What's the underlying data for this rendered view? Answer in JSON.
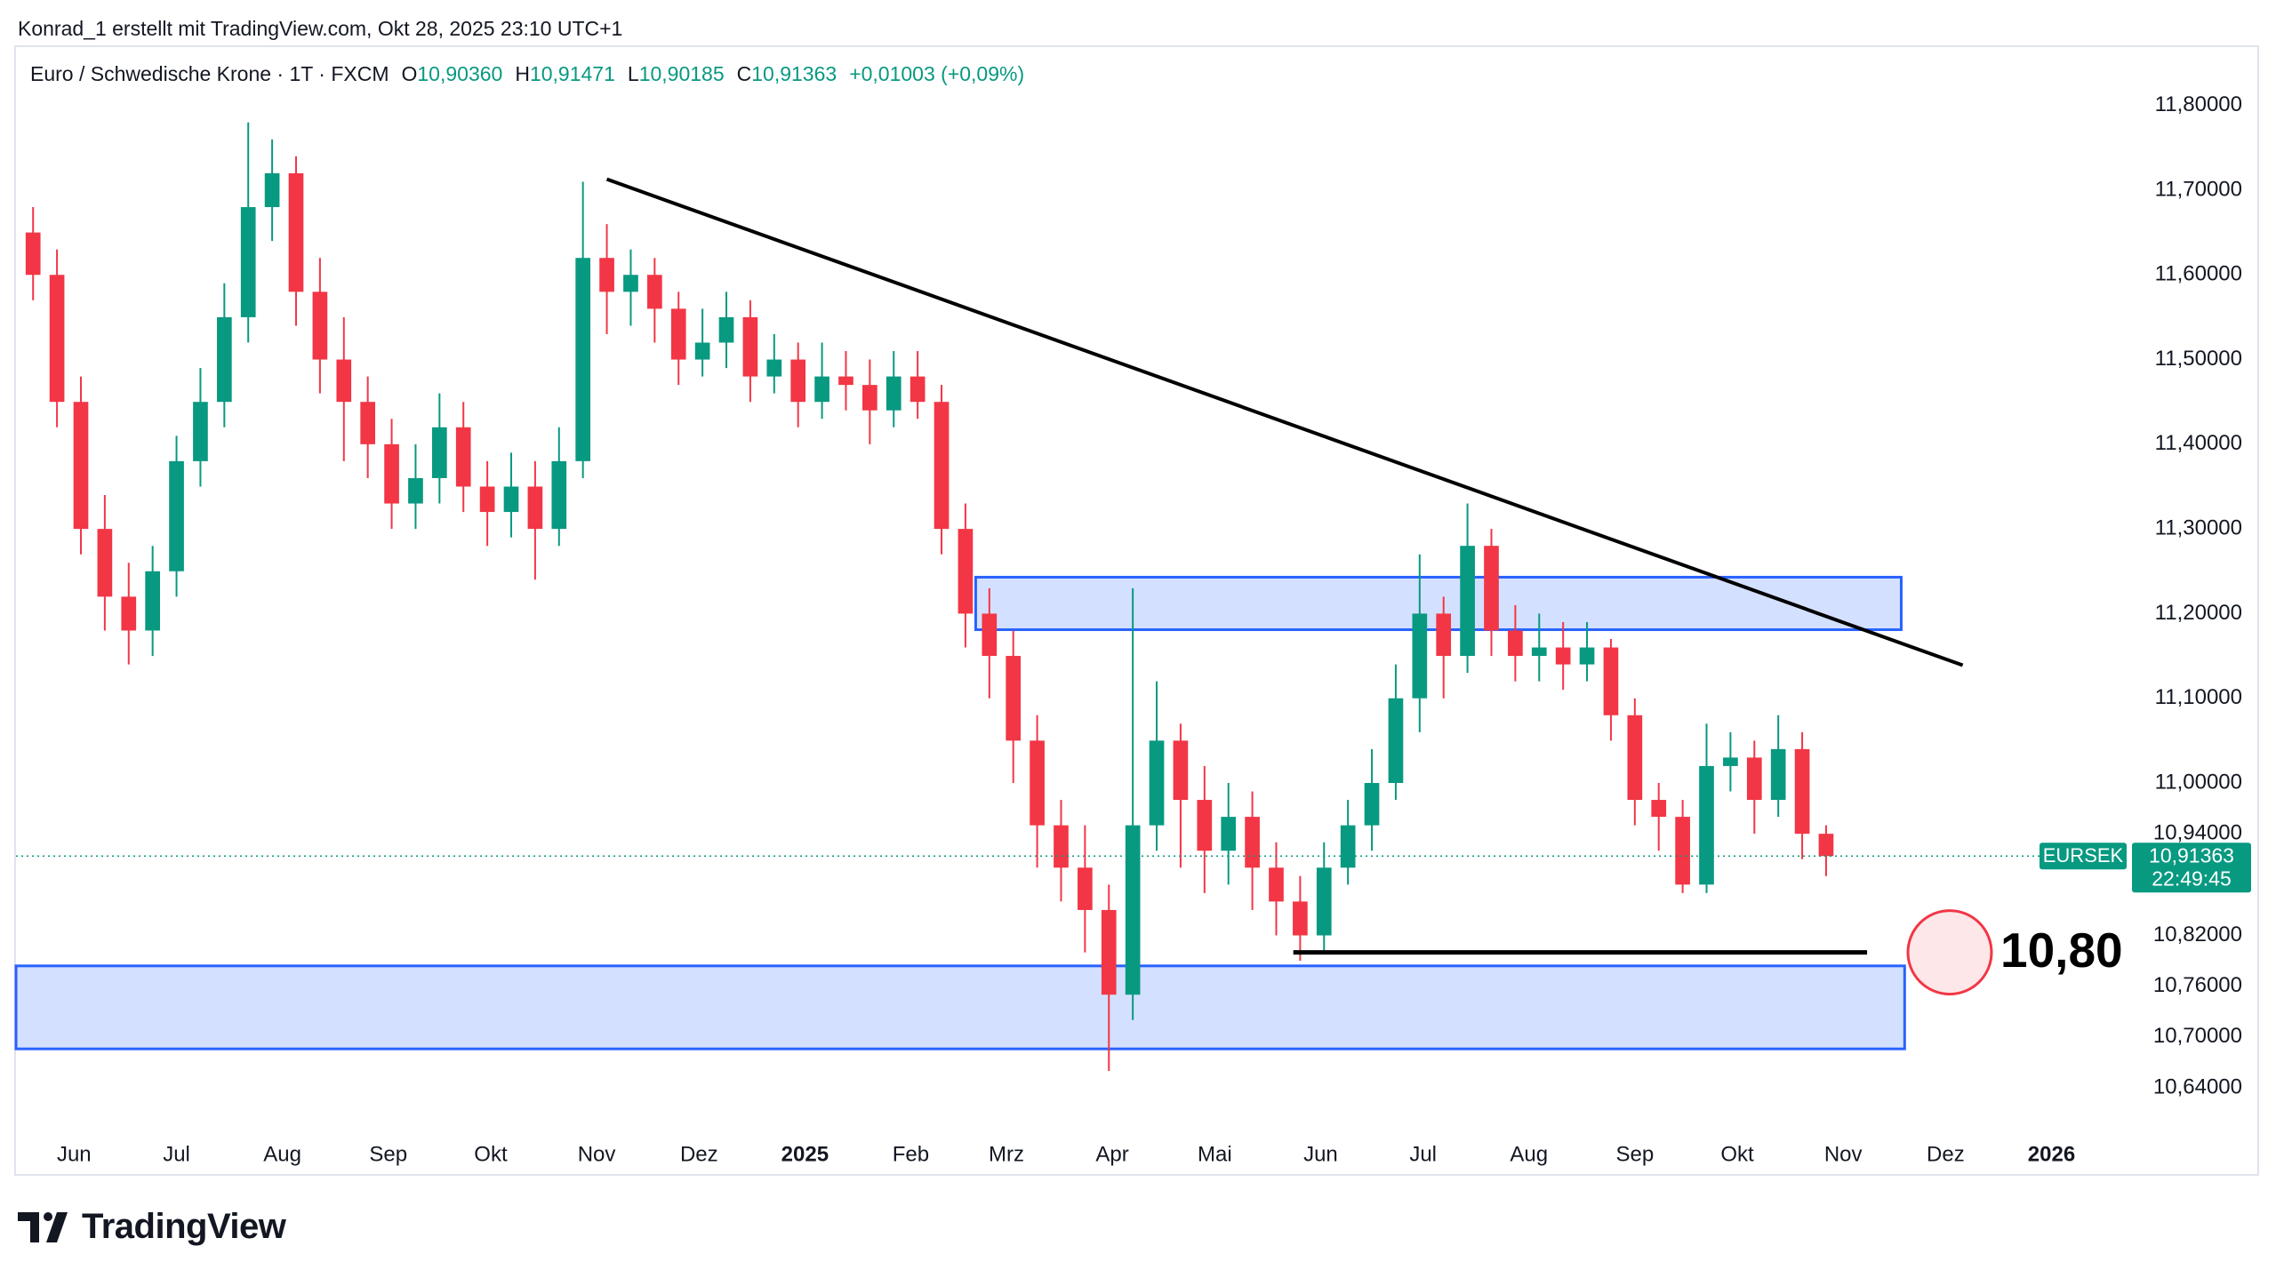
{
  "chart_data": {
    "type": "candlestick",
    "attribution": "Konrad_1 erstellt mit TradingView.com, Okt 28, 2025 23:10 UTC+1",
    "title": "Euro / Schwedische Krone · 1T · FXCM",
    "ohlc_header": [
      {
        "key": "O",
        "value": "10,90360"
      },
      {
        "key": "H",
        "value": "10,91471"
      },
      {
        "key": "L",
        "value": "10,90185"
      },
      {
        "key": "C",
        "value": "10,91363"
      }
    ],
    "change": "+0,01003 (+0,09%)",
    "x": [
      "2024-05-20",
      "2024-05-27",
      "2024-06-03",
      "2024-06-10",
      "2024-06-17",
      "2024-06-24",
      "2024-07-01",
      "2024-07-08",
      "2024-07-15",
      "2024-07-22",
      "2024-07-29",
      "2024-08-05",
      "2024-08-12",
      "2024-08-19",
      "2024-08-26",
      "2024-09-02",
      "2024-09-09",
      "2024-09-16",
      "2024-09-23",
      "2024-09-30",
      "2024-10-07",
      "2024-10-14",
      "2024-10-21",
      "2024-10-28",
      "2024-11-04",
      "2024-11-11",
      "2024-11-18",
      "2024-11-25",
      "2024-12-02",
      "2024-12-09",
      "2024-12-16",
      "2024-12-23",
      "2024-12-30",
      "2025-01-06",
      "2025-01-13",
      "2025-01-20",
      "2025-01-27",
      "2025-02-03",
      "2025-02-10",
      "2025-02-17",
      "2025-02-24",
      "2025-03-03",
      "2025-03-10",
      "2025-03-17",
      "2025-03-24",
      "2025-03-31",
      "2025-04-07",
      "2025-04-14",
      "2025-04-21",
      "2025-04-28",
      "2025-05-05",
      "2025-05-12",
      "2025-05-19",
      "2025-05-26",
      "2025-06-02",
      "2025-06-09",
      "2025-06-16",
      "2025-06-23",
      "2025-06-30",
      "2025-07-07",
      "2025-07-14",
      "2025-07-21",
      "2025-07-28",
      "2025-08-04",
      "2025-08-11",
      "2025-08-18",
      "2025-08-25",
      "2025-09-01",
      "2025-09-08",
      "2025-09-15",
      "2025-09-22",
      "2025-09-29",
      "2025-10-06",
      "2025-10-13",
      "2025-10-20",
      "2025-10-27"
    ],
    "series": [
      {
        "name": "EURSEK",
        "up_color": "#089981",
        "down_color": "#f23645",
        "open": [
          11.65,
          11.6,
          11.45,
          11.3,
          11.22,
          11.18,
          11.25,
          11.38,
          11.45,
          11.55,
          11.68,
          11.72,
          11.58,
          11.5,
          11.45,
          11.4,
          11.33,
          11.36,
          11.42,
          11.35,
          11.32,
          11.35,
          11.3,
          11.38,
          11.62,
          11.58,
          11.6,
          11.56,
          11.5,
          11.52,
          11.55,
          11.48,
          11.5,
          11.45,
          11.48,
          11.47,
          11.44,
          11.48,
          11.45,
          11.3,
          11.2,
          11.15,
          11.05,
          10.95,
          10.9,
          10.85,
          10.75,
          10.95,
          11.05,
          10.98,
          10.92,
          10.96,
          10.9,
          10.86,
          10.82,
          10.9,
          10.95,
          11.0,
          11.1,
          11.2,
          11.15,
          11.28,
          11.18,
          11.15,
          11.16,
          11.14,
          11.16,
          11.08,
          10.98,
          10.96,
          10.88,
          11.02,
          11.03,
          10.98,
          11.04,
          10.94
        ],
        "high": [
          11.68,
          11.63,
          11.48,
          11.34,
          11.26,
          11.28,
          11.41,
          11.49,
          11.59,
          11.78,
          11.76,
          11.74,
          11.62,
          11.55,
          11.48,
          11.43,
          11.4,
          11.46,
          11.45,
          11.38,
          11.39,
          11.38,
          11.42,
          11.71,
          11.66,
          11.63,
          11.62,
          11.58,
          11.56,
          11.58,
          11.57,
          11.53,
          11.52,
          11.52,
          11.51,
          11.5,
          11.51,
          11.51,
          11.47,
          11.33,
          11.23,
          11.18,
          11.08,
          10.98,
          10.95,
          10.88,
          11.23,
          11.12,
          11.07,
          11.02,
          11.0,
          10.99,
          10.93,
          10.89,
          10.93,
          10.98,
          11.04,
          11.14,
          11.27,
          11.22,
          11.33,
          11.3,
          11.21,
          11.2,
          11.19,
          11.19,
          11.17,
          11.1,
          11.0,
          10.98,
          11.07,
          11.06,
          11.05,
          11.08,
          11.06,
          10.95
        ],
        "low": [
          11.57,
          11.42,
          11.27,
          11.18,
          11.14,
          11.15,
          11.22,
          11.35,
          11.42,
          11.52,
          11.64,
          11.54,
          11.46,
          11.38,
          11.36,
          11.3,
          11.3,
          11.33,
          11.32,
          11.28,
          11.29,
          11.24,
          11.28,
          11.36,
          11.53,
          11.54,
          11.52,
          11.47,
          11.48,
          11.49,
          11.45,
          11.46,
          11.42,
          11.43,
          11.44,
          11.4,
          11.42,
          11.43,
          11.27,
          11.16,
          11.1,
          11.0,
          10.9,
          10.86,
          10.8,
          10.66,
          10.72,
          10.92,
          10.9,
          10.87,
          10.88,
          10.85,
          10.82,
          10.79,
          10.8,
          10.88,
          10.92,
          10.98,
          11.06,
          11.1,
          11.13,
          11.15,
          11.12,
          11.12,
          11.11,
          11.12,
          11.05,
          10.95,
          10.92,
          10.87,
          10.87,
          10.99,
          10.94,
          10.96,
          10.91,
          10.89
        ],
        "close": [
          11.6,
          11.45,
          11.3,
          11.22,
          11.18,
          11.25,
          11.38,
          11.45,
          11.55,
          11.68,
          11.72,
          11.58,
          11.5,
          11.45,
          11.4,
          11.33,
          11.36,
          11.42,
          11.35,
          11.32,
          11.35,
          11.3,
          11.38,
          11.62,
          11.58,
          11.6,
          11.56,
          11.5,
          11.52,
          11.55,
          11.48,
          11.5,
          11.45,
          11.48,
          11.47,
          11.44,
          11.48,
          11.45,
          11.3,
          11.2,
          11.15,
          11.05,
          10.95,
          10.9,
          10.85,
          10.75,
          10.95,
          11.05,
          10.98,
          10.92,
          10.96,
          10.9,
          10.86,
          10.82,
          10.9,
          10.95,
          11.0,
          11.1,
          11.2,
          11.15,
          11.28,
          11.18,
          11.15,
          11.16,
          11.14,
          11.16,
          11.08,
          10.98,
          10.96,
          10.88,
          11.02,
          11.03,
          10.98,
          11.04,
          10.94,
          10.91363
        ]
      }
    ],
    "xlim": [
      "2024-05-15",
      "2026-01-23"
    ],
    "xticks": [
      {
        "value": "2024-06-01",
        "label": "Jun"
      },
      {
        "value": "2024-07-01",
        "label": "Jul"
      },
      {
        "value": "2024-08-01",
        "label": "Aug"
      },
      {
        "value": "2024-09-01",
        "label": "Sep"
      },
      {
        "value": "2024-10-01",
        "label": "Okt"
      },
      {
        "value": "2024-11-01",
        "label": "Nov"
      },
      {
        "value": "2024-12-01",
        "label": "Dez"
      },
      {
        "value": "2025-01-01",
        "label": "2025"
      },
      {
        "value": "2025-02-01",
        "label": "Feb"
      },
      {
        "value": "2025-03-01",
        "label": "Mrz"
      },
      {
        "value": "2025-04-01",
        "label": "Apr"
      },
      {
        "value": "2025-05-01",
        "label": "Mai"
      },
      {
        "value": "2025-06-01",
        "label": "Jun"
      },
      {
        "value": "2025-07-01",
        "label": "Jul"
      },
      {
        "value": "2025-08-01",
        "label": "Aug"
      },
      {
        "value": "2025-09-01",
        "label": "Sep"
      },
      {
        "value": "2025-10-01",
        "label": "Okt"
      },
      {
        "value": "2025-11-01",
        "label": "Nov"
      },
      {
        "value": "2025-12-01",
        "label": "Dez"
      },
      {
        "value": "2026-01-01",
        "label": "2026"
      }
    ],
    "ylim": [
      10.597,
      11.87
    ],
    "yticks": [
      {
        "value": 11.8,
        "label": "11,80000"
      },
      {
        "value": 11.7,
        "label": "11,70000"
      },
      {
        "value": 11.6,
        "label": "11,60000"
      },
      {
        "value": 11.5,
        "label": "11,50000"
      },
      {
        "value": 11.4,
        "label": "11,40000"
      },
      {
        "value": 11.3,
        "label": "11,30000"
      },
      {
        "value": 11.2,
        "label": "11,20000"
      },
      {
        "value": 11.1,
        "label": "11,10000"
      },
      {
        "value": 11.0,
        "label": "11,00000"
      },
      {
        "value": 10.94,
        "label": "10,94000"
      },
      {
        "value": 10.82,
        "label": "10,82000"
      },
      {
        "value": 10.76,
        "label": "10,76000"
      },
      {
        "value": 10.7,
        "label": "10,70000"
      },
      {
        "value": 10.64,
        "label": "10,64000"
      }
    ],
    "grid": false,
    "price_tag": {
      "symbol": "EURSEK",
      "label": "10,91363",
      "countdown": "22:49:45"
    },
    "trendline": {
      "x": [
        "2024-11-04",
        "2025-12-06"
      ],
      "y": [
        11.713,
        11.139
      ],
      "color": "#000000"
    },
    "zones": [
      {
        "x": [
          "2025-02-20",
          "2025-11-18"
        ],
        "y": [
          11.181,
          11.243
        ]
      },
      {
        "x": [
          "2024-05-15",
          "2025-11-19"
        ],
        "y": [
          10.686,
          10.784
        ]
      }
    ],
    "support": {
      "x": [
        "2025-05-24",
        "2025-11-08"
      ],
      "y": 10.8,
      "label": "10,80"
    },
    "brand": "TradingView"
  }
}
